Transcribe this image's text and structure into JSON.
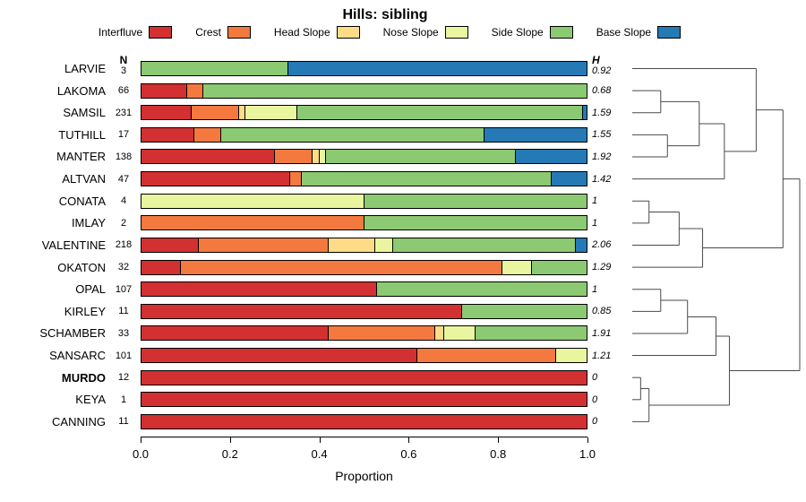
{
  "title": "Hills: sibling",
  "axis": {
    "label": "Proportion",
    "ticks": [
      "0.0",
      "0.2",
      "0.4",
      "0.6",
      "0.8",
      "1.0"
    ],
    "tick_values": [
      0,
      0.2,
      0.4,
      0.6,
      0.8,
      1.0
    ],
    "n_header": "N",
    "h_header": "H"
  },
  "legend": [
    {
      "label": "Interfluve",
      "color": "#D33031"
    },
    {
      "label": "Crest",
      "color": "#F3793F"
    },
    {
      "label": "Head Slope",
      "color": "#FDDC87"
    },
    {
      "label": "Nose Slope",
      "color": "#EAF69F"
    },
    {
      "label": "Side Slope",
      "color": "#8CC973"
    },
    {
      "label": "Base Slope",
      "color": "#2579B5"
    }
  ],
  "chart_data": {
    "type": "bar",
    "subtype": "horizontal-stacked-proportion",
    "title": "Hills: sibling",
    "xlabel": "Proportion",
    "xlim": [
      0,
      1
    ],
    "categories": [
      "Interfluve",
      "Crest",
      "Head Slope",
      "Nose Slope",
      "Side Slope",
      "Base Slope"
    ],
    "colors": [
      "#D33031",
      "#F3793F",
      "#FDDC87",
      "#EAF69F",
      "#8CC973",
      "#2579B5"
    ],
    "rows": [
      {
        "name": "LARVIE",
        "n": "3",
        "h": "0.92",
        "bold": false,
        "segments": [
          0,
          0,
          0,
          0,
          0.33,
          0.67
        ]
      },
      {
        "name": "LAKOMA",
        "n": "66",
        "h": "0.68",
        "bold": false,
        "segments": [
          0.105,
          0.035,
          0,
          0,
          0.86,
          0
        ]
      },
      {
        "name": "SAMSIL",
        "n": "231",
        "h": "1.59",
        "bold": false,
        "segments": [
          0.115,
          0.105,
          0.015,
          0.115,
          0.64,
          0.01
        ]
      },
      {
        "name": "TUTHILL",
        "n": "17",
        "h": "1.55",
        "bold": false,
        "segments": [
          0.12,
          0.06,
          0,
          0,
          0.59,
          0.23
        ]
      },
      {
        "name": "MANTER",
        "n": "138",
        "h": "1.92",
        "bold": false,
        "segments": [
          0.3,
          0.085,
          0.015,
          0.015,
          0.425,
          0.16
        ]
      },
      {
        "name": "ALTVAN",
        "n": "47",
        "h": "1.42",
        "bold": false,
        "segments": [
          0.335,
          0.025,
          0,
          0,
          0.56,
          0.08
        ]
      },
      {
        "name": "CONATA",
        "n": "4",
        "h": "1",
        "bold": false,
        "segments": [
          0,
          0,
          0,
          0.5,
          0.5,
          0
        ]
      },
      {
        "name": "IMLAY",
        "n": "2",
        "h": "1",
        "bold": false,
        "segments": [
          0,
          0.5,
          0,
          0,
          0.5,
          0
        ]
      },
      {
        "name": "VALENTINE",
        "n": "218",
        "h": "2.06",
        "bold": false,
        "segments": [
          0.13,
          0.29,
          0.105,
          0.04,
          0.41,
          0.025
        ]
      },
      {
        "name": "OKATON",
        "n": "32",
        "h": "1.29",
        "bold": false,
        "segments": [
          0.09,
          0.72,
          0,
          0.065,
          0.125,
          0
        ]
      },
      {
        "name": "OPAL",
        "n": "107",
        "h": "1",
        "bold": false,
        "segments": [
          0.53,
          0,
          0,
          0,
          0.47,
          0
        ]
      },
      {
        "name": "KIRLEY",
        "n": "11",
        "h": "0.85",
        "bold": false,
        "segments": [
          0.72,
          0,
          0,
          0,
          0.28,
          0
        ]
      },
      {
        "name": "SCHAMBER",
        "n": "33",
        "h": "1.91",
        "bold": false,
        "segments": [
          0.42,
          0.24,
          0.02,
          0.07,
          0.25,
          0
        ]
      },
      {
        "name": "SANSARC",
        "n": "101",
        "h": "1.21",
        "bold": false,
        "segments": [
          0.62,
          0.31,
          0,
          0.07,
          0,
          0
        ]
      },
      {
        "name": "MURDO",
        "n": "12",
        "h": "0",
        "bold": true,
        "segments": [
          1,
          0,
          0,
          0,
          0,
          0
        ]
      },
      {
        "name": "KEYA",
        "n": "1",
        "h": "0",
        "bold": false,
        "segments": [
          1,
          0,
          0,
          0,
          0,
          0
        ]
      },
      {
        "name": "CANNING",
        "n": "11",
        "h": "0",
        "bold": false,
        "segments": [
          1,
          0,
          0,
          0,
          0,
          0
        ]
      }
    ],
    "dendrogram": {
      "orientation": "right-of-rows",
      "merges": [
        {
          "a": "L1",
          "b": "L2",
          "h": 0.17
        },
        {
          "a": "L3",
          "b": "L4",
          "h": 0.21
        },
        {
          "a": "M0",
          "b": "M1",
          "h": 0.4
        },
        {
          "a": "M2",
          "b": "L5",
          "h": 0.55
        },
        {
          "a": "M3",
          "b": "L0",
          "h": 0.74
        },
        {
          "a": "L6",
          "b": "L7",
          "h": 0.1
        },
        {
          "a": "M5",
          "b": "L8",
          "h": 0.28
        },
        {
          "a": "M6",
          "b": "L9",
          "h": 0.42
        },
        {
          "a": "M4",
          "b": "M7",
          "h": 0.9
        },
        {
          "a": "L10",
          "b": "L11",
          "h": 0.17
        },
        {
          "a": "M9",
          "b": "L12",
          "h": 0.33
        },
        {
          "a": "M10",
          "b": "L13",
          "h": 0.5
        },
        {
          "a": "L14",
          "b": "L15",
          "h": 0.05
        },
        {
          "a": "M12",
          "b": "L16",
          "h": 0.1
        },
        {
          "a": "M11",
          "b": "M13",
          "h": 0.58
        },
        {
          "a": "M8",
          "b": "M14",
          "h": 1.0
        }
      ]
    }
  },
  "layout_colors": {
    "bar_border": "#000000",
    "dendro_line": "#4a4a4a"
  }
}
